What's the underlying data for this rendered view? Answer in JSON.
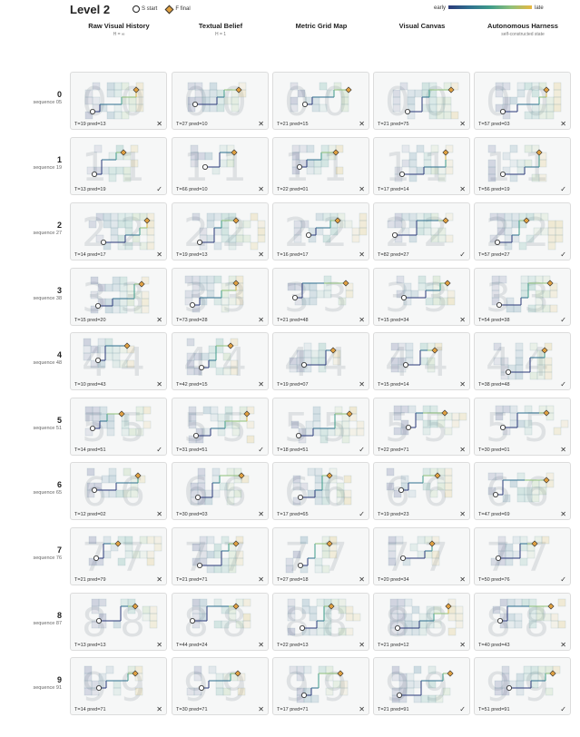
{
  "title": "Level 2",
  "legend": {
    "start_label": "S start",
    "final_label": "F final",
    "early_label": "early",
    "late_label": "late"
  },
  "columns": [
    {
      "label": "Raw Visual History",
      "sub": "H = ∞"
    },
    {
      "label": "Textual Belief",
      "sub": "H = 1"
    },
    {
      "label": "Metric Grid Map",
      "sub": ""
    },
    {
      "label": "Visual Canvas",
      "sub": ""
    },
    {
      "label": "Autonomous Harness",
      "sub": "self-constructed state"
    }
  ],
  "rows": [
    {
      "digit": "0",
      "label": "sequence 05",
      "cells": [
        {
          "caption": "T=19 pred=13",
          "result": "✕"
        },
        {
          "caption": "T=27 pred=10",
          "result": "✕"
        },
        {
          "caption": "T=21 pred=15",
          "result": "✕"
        },
        {
          "caption": "T=21 pred=75",
          "result": "✕"
        },
        {
          "caption": "T=57 pred=03",
          "result": "✕"
        }
      ]
    },
    {
      "digit": "1",
      "label": "sequence 19",
      "cells": [
        {
          "caption": "T=13 pred=19",
          "result": "✓"
        },
        {
          "caption": "T=66 pred=10",
          "result": "✕"
        },
        {
          "caption": "T=22 pred=01",
          "result": "✕"
        },
        {
          "caption": "T=17 pred=14",
          "result": "✕"
        },
        {
          "caption": "T=56 pred=19",
          "result": "✓"
        }
      ]
    },
    {
      "digit": "2",
      "label": "sequence 27",
      "cells": [
        {
          "caption": "T=14 pred=17",
          "result": "✕"
        },
        {
          "caption": "T=19 pred=13",
          "result": "✕"
        },
        {
          "caption": "T=16 pred=17",
          "result": "✕"
        },
        {
          "caption": "T=82 pred=27",
          "result": "✓"
        },
        {
          "caption": "T=57 pred=27",
          "result": "✓"
        }
      ]
    },
    {
      "digit": "3",
      "label": "sequence 38",
      "cells": [
        {
          "caption": "T=15 pred=20",
          "result": "✕"
        },
        {
          "caption": "T=73 pred=28",
          "result": "✕"
        },
        {
          "caption": "T=21 pred=48",
          "result": "✕"
        },
        {
          "caption": "T=15 pred=34",
          "result": "✕"
        },
        {
          "caption": "T=54 pred=38",
          "result": "✓"
        }
      ]
    },
    {
      "digit": "4",
      "label": "sequence 48",
      "cells": [
        {
          "caption": "T=10 pred=43",
          "result": "✕"
        },
        {
          "caption": "T=42 pred=15",
          "result": "✕"
        },
        {
          "caption": "T=19 pred=07",
          "result": "✕"
        },
        {
          "caption": "T=15 pred=14",
          "result": "✕"
        },
        {
          "caption": "T=38 pred=48",
          "result": "✓"
        }
      ]
    },
    {
      "digit": "5",
      "label": "sequence 51",
      "cells": [
        {
          "caption": "T=14 pred=51",
          "result": "✓"
        },
        {
          "caption": "T=31 pred=51",
          "result": "✓"
        },
        {
          "caption": "T=18 pred=51",
          "result": "✓"
        },
        {
          "caption": "T=22 pred=71",
          "result": "✕"
        },
        {
          "caption": "T=30 pred=01",
          "result": "✕"
        }
      ]
    },
    {
      "digit": "6",
      "label": "sequence 65",
      "cells": [
        {
          "caption": "T=12 pred=02",
          "result": "✕"
        },
        {
          "caption": "T=30 pred=03",
          "result": "✕"
        },
        {
          "caption": "T=17 pred=65",
          "result": "✓"
        },
        {
          "caption": "T=19 pred=23",
          "result": "✕"
        },
        {
          "caption": "T=47 pred=69",
          "result": "✕"
        }
      ]
    },
    {
      "digit": "7",
      "label": "sequence 76",
      "cells": [
        {
          "caption": "T=21 pred=79",
          "result": "✕"
        },
        {
          "caption": "T=21 pred=71",
          "result": "✕"
        },
        {
          "caption": "T=27 pred=18",
          "result": "✕"
        },
        {
          "caption": "T=20 pred=34",
          "result": "✕"
        },
        {
          "caption": "T=50 pred=76",
          "result": "✓"
        }
      ]
    },
    {
      "digit": "8",
      "label": "sequence 87",
      "cells": [
        {
          "caption": "T=13 pred=13",
          "result": "✕"
        },
        {
          "caption": "T=44 pred=24",
          "result": "✕"
        },
        {
          "caption": "T=22 pred=13",
          "result": "✕"
        },
        {
          "caption": "T=21 pred=12",
          "result": "✕"
        },
        {
          "caption": "T=40 pred=43",
          "result": "✕"
        }
      ]
    },
    {
      "digit": "9",
      "label": "sequence 91",
      "cells": [
        {
          "caption": "T=14 pred=71",
          "result": "✕"
        },
        {
          "caption": "T=30 pred=71",
          "result": "✕"
        },
        {
          "caption": "T=17 pred=71",
          "result": "✕"
        },
        {
          "caption": "T=21 pred=91",
          "result": "✓"
        },
        {
          "caption": "T=51 pred=91",
          "result": "✓"
        }
      ]
    }
  ]
}
